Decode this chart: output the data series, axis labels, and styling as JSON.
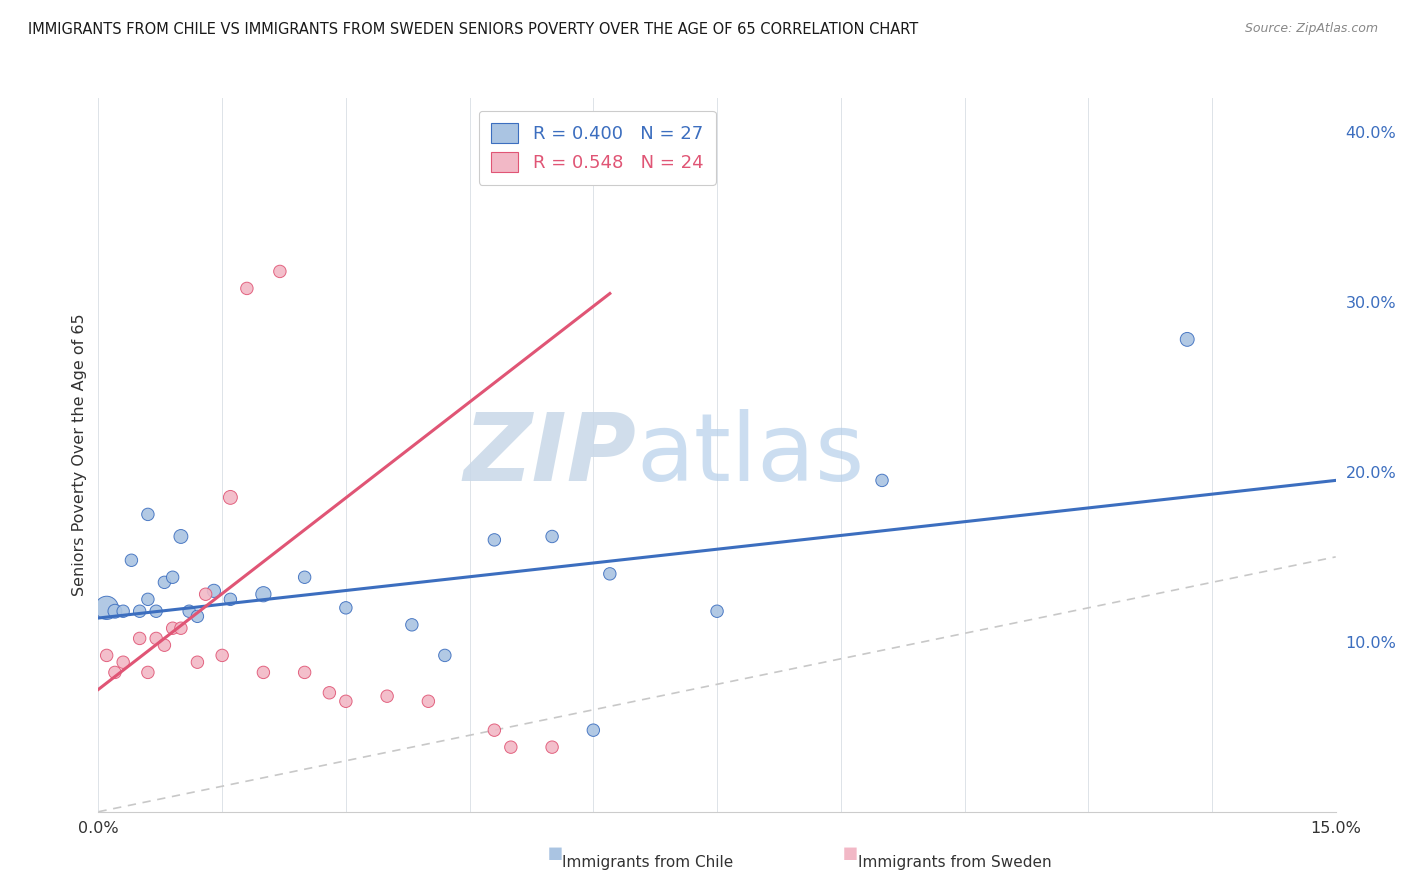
{
  "title": "IMMIGRANTS FROM CHILE VS IMMIGRANTS FROM SWEDEN SENIORS POVERTY OVER THE AGE OF 65 CORRELATION CHART",
  "source": "Source: ZipAtlas.com",
  "ylabel": "Seniors Poverty Over the Age of 65",
  "xlim": [
    0.0,
    0.15
  ],
  "ylim": [
    0.0,
    0.42
  ],
  "xticks": [
    0.0,
    0.015,
    0.03,
    0.045,
    0.06,
    0.075,
    0.09,
    0.105,
    0.12,
    0.135,
    0.15
  ],
  "ytick_positions": [
    0.1,
    0.2,
    0.3,
    0.4
  ],
  "ytick_labels": [
    "10.0%",
    "20.0%",
    "30.0%",
    "40.0%"
  ],
  "chile_color": "#aac4e2",
  "sweden_color": "#f2b8c6",
  "chile_line_color": "#3c6ebf",
  "sweden_line_color": "#e05575",
  "diagonal_color": "#c8c8c8",
  "legend_R_chile": "0.400",
  "legend_N_chile": "27",
  "legend_R_sweden": "0.548",
  "legend_N_sweden": "24",
  "watermark_zip": "ZIP",
  "watermark_atlas": "atlas",
  "chile_line_x0": 0.0,
  "chile_line_y0": 0.114,
  "chile_line_x1": 0.15,
  "chile_line_y1": 0.195,
  "sweden_line_x0": 0.0,
  "sweden_line_y0": 0.072,
  "sweden_line_x1": 0.062,
  "sweden_line_y1": 0.305,
  "chile_scatter_x": [
    0.001,
    0.002,
    0.003,
    0.004,
    0.005,
    0.006,
    0.006,
    0.007,
    0.008,
    0.009,
    0.01,
    0.011,
    0.012,
    0.014,
    0.016,
    0.02,
    0.025,
    0.03,
    0.038,
    0.042,
    0.048,
    0.055,
    0.06,
    0.062,
    0.075,
    0.095,
    0.132
  ],
  "chile_scatter_y": [
    0.12,
    0.118,
    0.118,
    0.148,
    0.118,
    0.125,
    0.175,
    0.118,
    0.135,
    0.138,
    0.162,
    0.118,
    0.115,
    0.13,
    0.125,
    0.128,
    0.138,
    0.12,
    0.11,
    0.092,
    0.16,
    0.162,
    0.048,
    0.14,
    0.118,
    0.195,
    0.278
  ],
  "chile_scatter_size": [
    280,
    100,
    80,
    80,
    80,
    80,
    80,
    80,
    80,
    80,
    100,
    80,
    80,
    90,
    80,
    120,
    80,
    80,
    80,
    80,
    80,
    80,
    80,
    80,
    80,
    80,
    100
  ],
  "sweden_scatter_x": [
    0.001,
    0.002,
    0.003,
    0.005,
    0.006,
    0.007,
    0.008,
    0.009,
    0.01,
    0.012,
    0.013,
    0.015,
    0.016,
    0.018,
    0.02,
    0.022,
    0.025,
    0.028,
    0.03,
    0.035,
    0.04,
    0.048,
    0.05,
    0.055
  ],
  "sweden_scatter_y": [
    0.092,
    0.082,
    0.088,
    0.102,
    0.082,
    0.102,
    0.098,
    0.108,
    0.108,
    0.088,
    0.128,
    0.092,
    0.185,
    0.308,
    0.082,
    0.318,
    0.082,
    0.07,
    0.065,
    0.068,
    0.065,
    0.048,
    0.038,
    0.038
  ],
  "sweden_scatter_size": [
    80,
    80,
    80,
    80,
    80,
    80,
    80,
    80,
    80,
    80,
    80,
    80,
    100,
    80,
    80,
    80,
    80,
    80,
    80,
    80,
    80,
    80,
    80,
    80
  ]
}
